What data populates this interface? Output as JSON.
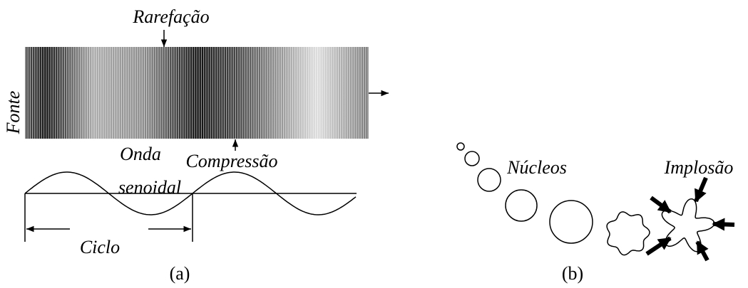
{
  "panel_a": {
    "rarefaction": "Rarefação",
    "source": "Fonte",
    "wave_line1": "Onda",
    "wave_line2": "senoidal",
    "compression": "Compressão",
    "cycle": "Ciclo",
    "caption": "(a)"
  },
  "panel_b": {
    "nuclei": "Núcleos",
    "implosion": "Implosão",
    "caption": "(b)"
  }
}
